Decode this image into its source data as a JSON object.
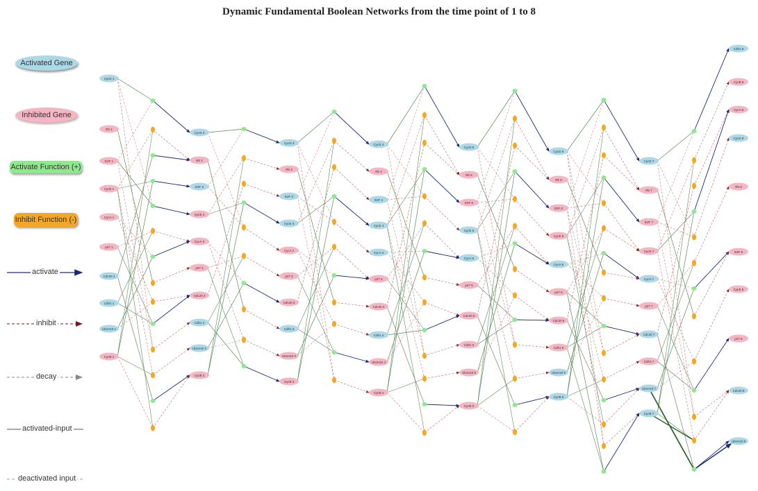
{
  "title": "Dynamic Fundamental Boolean Networks from the time point of 1 to 8",
  "legend": {
    "activated_gene": "Activated Gene",
    "inhibited_gene": "Inhibited Gene",
    "activate_function": "Activate Function (+)",
    "inhibit_function": "Inhibit Function (-)",
    "activate": "activate",
    "inhibit": "inhibit",
    "decay": "decay",
    "activated_input": "activated-input",
    "deactivated_input": "deactivated input"
  },
  "colors": {
    "activated_gene": "#add8e6",
    "inhibited_gene": "#f4b6c2",
    "activate_function": "#8ee88e",
    "inhibit_function": "#f5a623",
    "activate_edge": "#1a2a7a",
    "inhibit_edge": "#7a1a1a",
    "decay_edge": "#888888",
    "activated_input_edge": "#5a8a5a",
    "deactivated_input_edge": "#c98a8a"
  },
  "genes": [
    {
      "id": "g1_1",
      "label": "CycD 1",
      "state": "activated"
    },
    {
      "id": "g1_2",
      "label": "Rb 1",
      "state": "inhibited"
    },
    {
      "id": "g1_3",
      "label": "E2F 1",
      "state": "inhibited"
    },
    {
      "id": "g1_4",
      "label": "CycE 1",
      "state": "inhibited"
    },
    {
      "id": "g1_5",
      "label": "CycA 1",
      "state": "inhibited"
    },
    {
      "id": "g1_6",
      "label": "p27 1",
      "state": "inhibited"
    },
    {
      "id": "g1_7",
      "label": "Cdc20 1",
      "state": "activated"
    },
    {
      "id": "g1_8",
      "label": "Cdh1 1",
      "state": "activated"
    },
    {
      "id": "g1_9",
      "label": "UbcH10 1",
      "state": "activated"
    },
    {
      "id": "g1_10",
      "label": "CycB 1",
      "state": "inhibited"
    },
    {
      "id": "g2_1",
      "label": "CycD 2",
      "state": "activated"
    },
    {
      "id": "g2_2",
      "label": "Rb 2",
      "state": "inhibited"
    },
    {
      "id": "g2_3",
      "label": "E2F 2",
      "state": "activated"
    },
    {
      "id": "g2_4",
      "label": "CycE 2",
      "state": "inhibited"
    },
    {
      "id": "g2_5",
      "label": "CycA 2",
      "state": "inhibited"
    },
    {
      "id": "g2_6",
      "label": "p27 2",
      "state": "inhibited"
    },
    {
      "id": "g2_7",
      "label": "Cdc20 2",
      "state": "inhibited"
    },
    {
      "id": "g2_8",
      "label": "Cdh1 2",
      "state": "activated"
    },
    {
      "id": "g2_9",
      "label": "UbcH10 2",
      "state": "activated"
    },
    {
      "id": "g2_10",
      "label": "CycB 2",
      "state": "inhibited"
    },
    {
      "id": "g3_1",
      "label": "CycD 3",
      "state": "activated"
    },
    {
      "id": "g3_2",
      "label": "Rb 3",
      "state": "inhibited"
    },
    {
      "id": "g3_3",
      "label": "E2F 3",
      "state": "activated"
    },
    {
      "id": "g3_4",
      "label": "CycE 3",
      "state": "activated"
    },
    {
      "id": "g3_5",
      "label": "CycA 3",
      "state": "inhibited"
    },
    {
      "id": "g3_6",
      "label": "p27 3",
      "state": "inhibited"
    },
    {
      "id": "g3_7",
      "label": "Cdc20 3",
      "state": "inhibited"
    },
    {
      "id": "g3_8",
      "label": "Cdh1 3",
      "state": "activated"
    },
    {
      "id": "g3_9",
      "label": "UbcH10 3",
      "state": "inhibited"
    },
    {
      "id": "g3_10",
      "label": "CycB 3",
      "state": "inhibited"
    },
    {
      "id": "g4_1",
      "label": "CycD 4",
      "state": "activated"
    },
    {
      "id": "g4_2",
      "label": "Rb 4",
      "state": "inhibited"
    },
    {
      "id": "g4_3",
      "label": "E2F 4",
      "state": "activated"
    },
    {
      "id": "g4_4",
      "label": "CycE 4",
      "state": "activated"
    },
    {
      "id": "g4_5",
      "label": "CycA 4",
      "state": "activated"
    },
    {
      "id": "g4_6",
      "label": "p27 4",
      "state": "inhibited"
    },
    {
      "id": "g4_7",
      "label": "Cdc20 4",
      "state": "inhibited"
    },
    {
      "id": "g4_8",
      "label": "Cdh1 4",
      "state": "activated"
    },
    {
      "id": "g4_9",
      "label": "UbcH10 4",
      "state": "inhibited"
    },
    {
      "id": "g4_10",
      "label": "CycB 4",
      "state": "inhibited"
    },
    {
      "id": "g5_1",
      "label": "CycD 5",
      "state": "activated"
    },
    {
      "id": "g5_2",
      "label": "Rb 5",
      "state": "inhibited"
    },
    {
      "id": "g5_3",
      "label": "E2F 5",
      "state": "inhibited"
    },
    {
      "id": "g5_4",
      "label": "CycE 5",
      "state": "activated"
    },
    {
      "id": "g5_5",
      "label": "CycA 5",
      "state": "activated"
    },
    {
      "id": "g5_6",
      "label": "p27 5",
      "state": "inhibited"
    },
    {
      "id": "g5_7",
      "label": "Cdc20 5",
      "state": "inhibited"
    },
    {
      "id": "g5_8",
      "label": "Cdh1 5",
      "state": "inhibited"
    },
    {
      "id": "g5_9",
      "label": "UbcH10 5",
      "state": "inhibited"
    },
    {
      "id": "g5_10",
      "label": "CycB 5",
      "state": "inhibited"
    },
    {
      "id": "g6_1",
      "label": "CycD 6",
      "state": "activated"
    },
    {
      "id": "g6_2",
      "label": "Rb 6",
      "state": "inhibited"
    },
    {
      "id": "g6_3",
      "label": "E2F 6",
      "state": "inhibited"
    },
    {
      "id": "g6_4",
      "label": "CycE 6",
      "state": "inhibited"
    },
    {
      "id": "g6_5",
      "label": "CycA 6",
      "state": "activated"
    },
    {
      "id": "g6_6",
      "label": "p27 6",
      "state": "inhibited"
    },
    {
      "id": "g6_7",
      "label": "Cdc20 6",
      "state": "inhibited"
    },
    {
      "id": "g6_8",
      "label": "Cdh1 6",
      "state": "inhibited"
    },
    {
      "id": "g6_9",
      "label": "UbcH10 6",
      "state": "activated"
    },
    {
      "id": "g6_10",
      "label": "CycB 6",
      "state": "activated"
    },
    {
      "id": "g7_1",
      "label": "CycD 7",
      "state": "activated"
    },
    {
      "id": "g7_2",
      "label": "Rb 7",
      "state": "inhibited"
    },
    {
      "id": "g7_3",
      "label": "E2F 7",
      "state": "inhibited"
    },
    {
      "id": "g7_4",
      "label": "CycE 7",
      "state": "inhibited"
    },
    {
      "id": "g7_5",
      "label": "CycA 7",
      "state": "activated"
    },
    {
      "id": "g7_6",
      "label": "p27 7",
      "state": "inhibited"
    },
    {
      "id": "g7_7",
      "label": "Cdc20 7",
      "state": "activated"
    },
    {
      "id": "g7_8",
      "label": "Cdh1 7",
      "state": "inhibited"
    },
    {
      "id": "g7_9",
      "label": "UbcH10 7",
      "state": "activated"
    },
    {
      "id": "g7_10",
      "label": "CycB 7",
      "state": "activated"
    },
    {
      "id": "g8_1",
      "label": "Cdh1 8",
      "state": "activated"
    },
    {
      "id": "g8_2",
      "label": "CycB 8",
      "state": "inhibited"
    },
    {
      "id": "g8_3",
      "label": "CycA 8",
      "state": "inhibited"
    },
    {
      "id": "g8_4",
      "label": "CycD 8",
      "state": "activated"
    },
    {
      "id": "g8_5",
      "label": "Rb 8",
      "state": "inhibited"
    },
    {
      "id": "g8_6",
      "label": "E2F 8",
      "state": "inhibited"
    },
    {
      "id": "g8_7",
      "label": "CycE 8",
      "state": "inhibited"
    },
    {
      "id": "g8_8",
      "label": "p27 8",
      "state": "inhibited"
    },
    {
      "id": "g8_9",
      "label": "Cdc20 8",
      "state": "activated"
    },
    {
      "id": "g8_10",
      "label": "UbcH10 8",
      "state": "activated"
    }
  ]
}
